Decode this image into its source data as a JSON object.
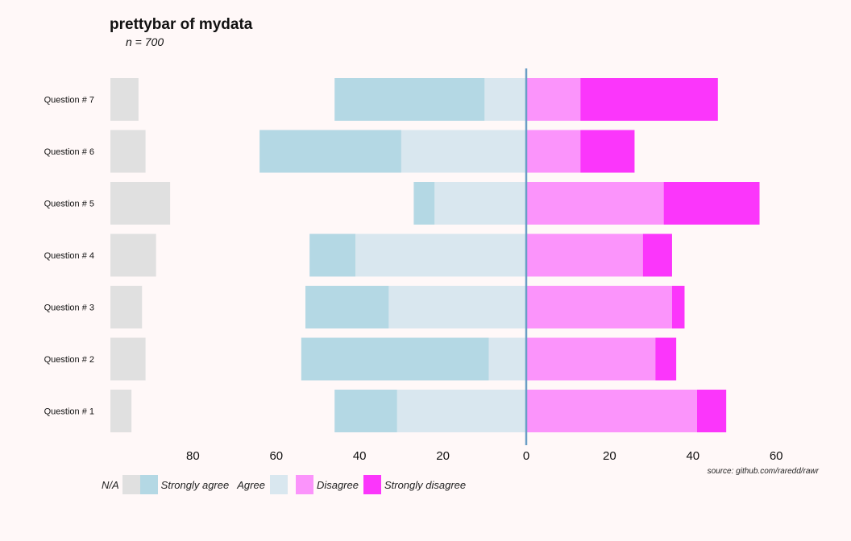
{
  "header": {
    "title": "prettybar of mydata",
    "subtitle": "n = 700"
  },
  "footer": {
    "source": "source: github.com/raredd/rawr"
  },
  "legend": [
    {
      "label": "N/A",
      "color": "#e0e0e0"
    },
    {
      "label": "Strongly agree",
      "color": "#b4d8e4"
    },
    {
      "label": "Agree",
      "color": "#d9e7ef"
    },
    {
      "label": "Disagree",
      "color": "#fb94fb"
    },
    {
      "label": "Strongly disagree",
      "color": "#fb36fb"
    }
  ],
  "chart_data": {
    "type": "bar",
    "orientation": "horizontal",
    "diverging": true,
    "categories": [
      "Question # 1",
      "Question # 2",
      "Question # 3",
      "Question # 4",
      "Question # 5",
      "Question # 6",
      "Question # 7"
    ],
    "series": [
      {
        "name": "N/A",
        "color": "#e0e0e0",
        "values": [
          6,
          10,
          9,
          13,
          17,
          10,
          8
        ]
      },
      {
        "name": "Strongly agree",
        "color": "#b4d8e4",
        "values": [
          15,
          45,
          20,
          11,
          5,
          34,
          36
        ]
      },
      {
        "name": "Agree",
        "color": "#d9e7ef",
        "values": [
          31,
          9,
          33,
          41,
          22,
          30,
          10
        ]
      },
      {
        "name": "Disagree",
        "color": "#fb94fb",
        "values": [
          41,
          31,
          35,
          28,
          33,
          13,
          13
        ]
      },
      {
        "name": "Strongly disagree",
        "color": "#fb36fb",
        "values": [
          7,
          5,
          3,
          7,
          23,
          13,
          33
        ]
      }
    ],
    "xticks": [
      "80",
      "60",
      "40",
      "20",
      "0",
      "20",
      "40",
      "60"
    ],
    "xlim": [
      -100,
      60
    ],
    "na_max": 100,
    "center_line_color": "#6a9ec5",
    "grid": false,
    "legend_position": "bottom-left"
  }
}
